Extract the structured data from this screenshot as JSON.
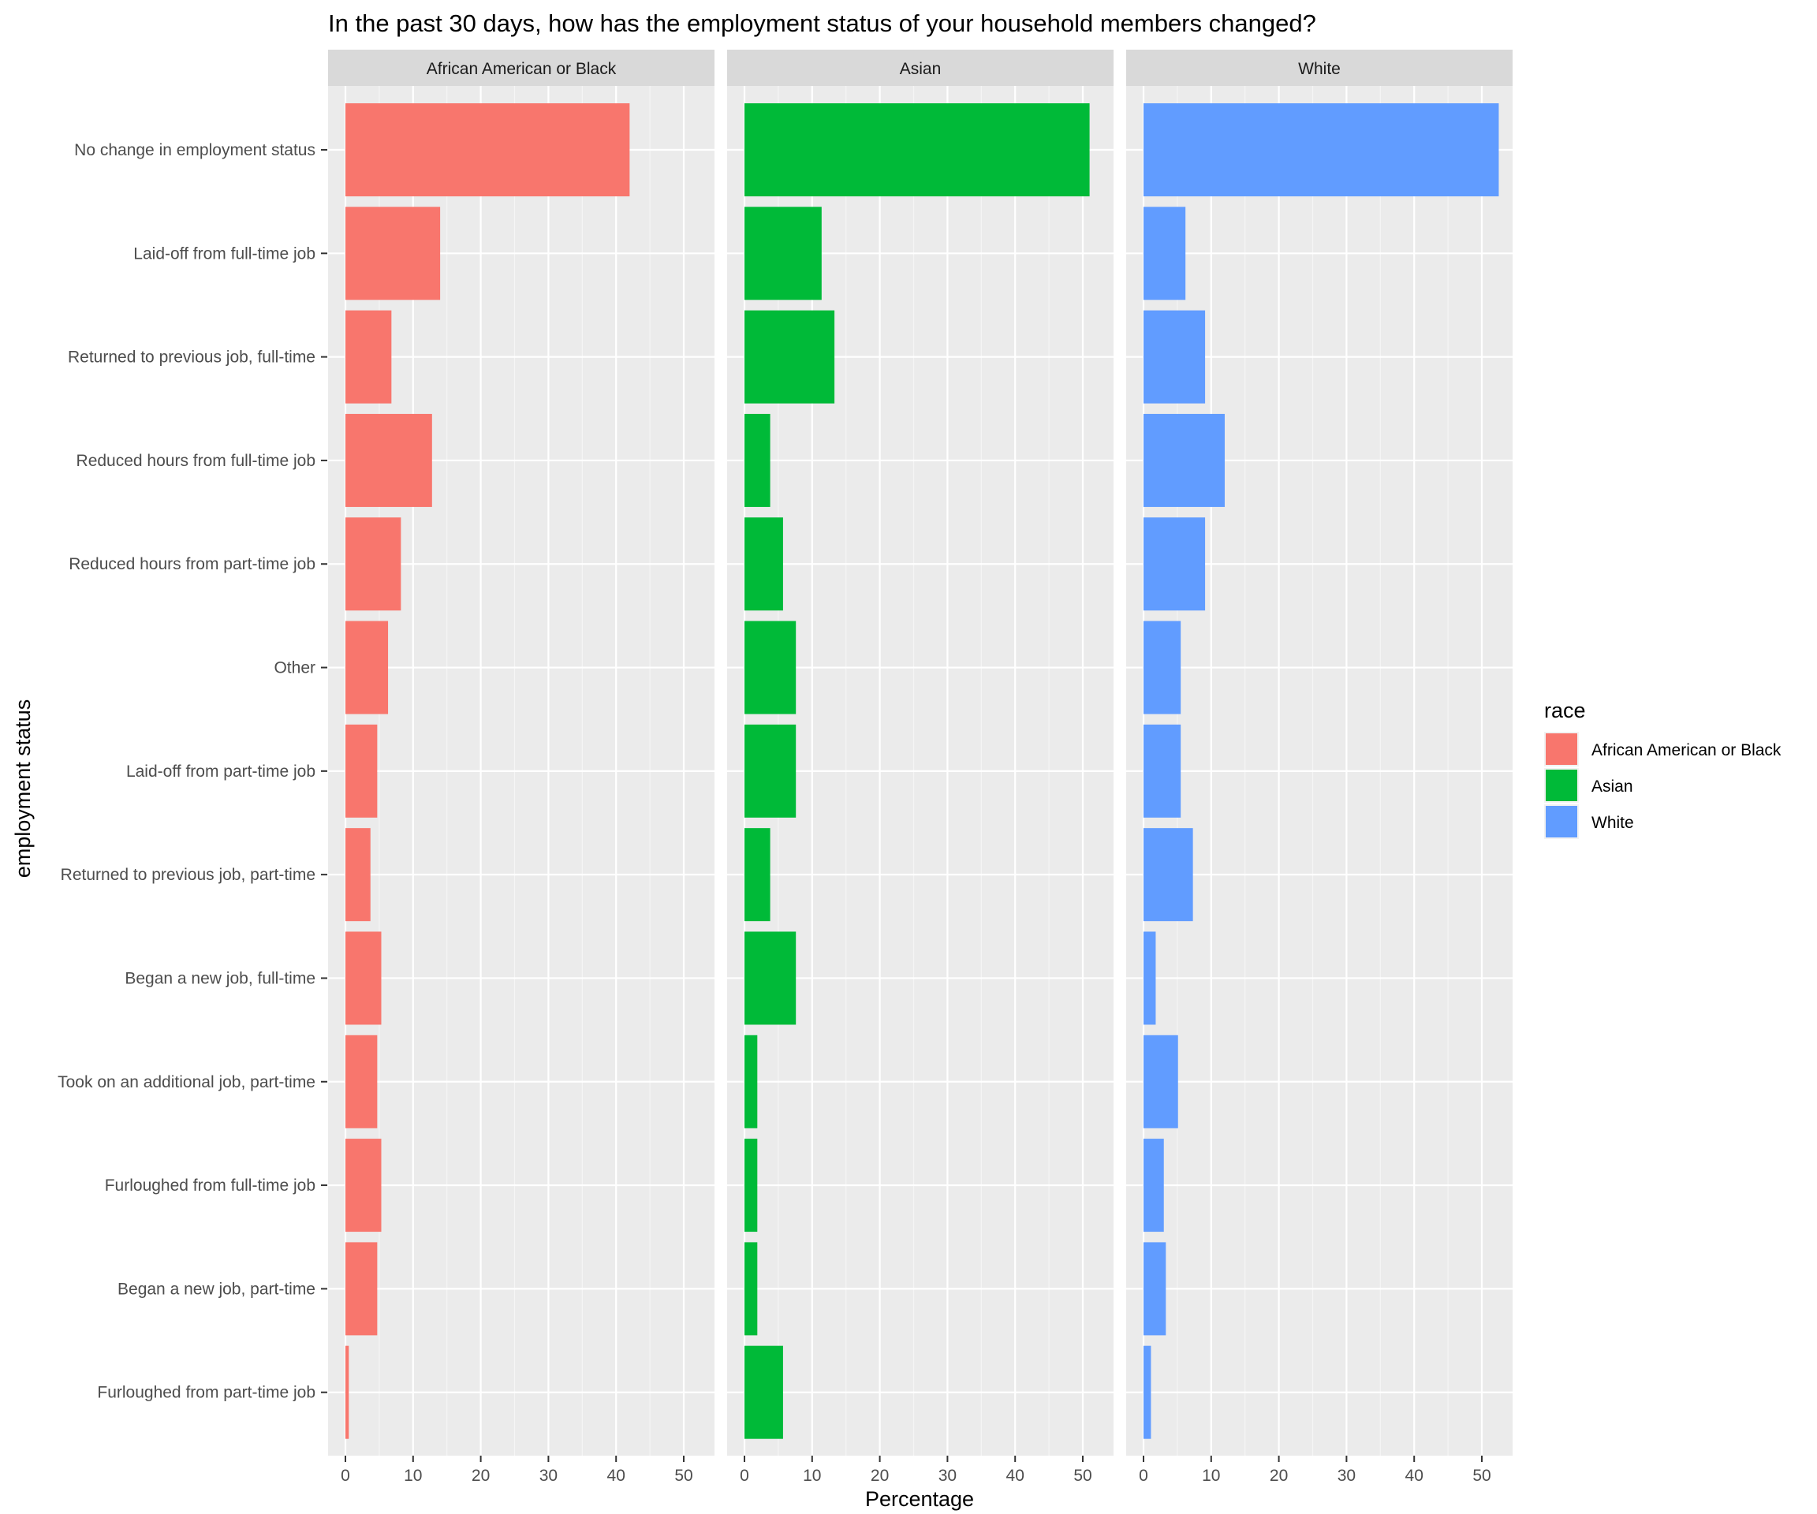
{
  "chart_data": {
    "type": "bar",
    "orientation": "horizontal",
    "title": "In the past 30 days, how has the employment status of your household members changed?",
    "xlabel": "Percentage",
    "ylabel": "employment status",
    "xlim": [
      0,
      55
    ],
    "x_ticks": [
      "0",
      "10",
      "20",
      "30",
      "40",
      "50"
    ],
    "categories": [
      "No change in employment status",
      "Laid-off from full-time job",
      "Returned to previous job, full-time",
      "Reduced hours from full-time job",
      "Reduced hours from part-time job",
      "Other",
      "Laid-off from part-time job",
      "Returned to previous job, part-time",
      "Began a new job, full-time",
      "Took on an additional job, part-time",
      "Furloughed from full-time job",
      "Began a new job, part-time",
      "Furloughed from part-time job"
    ],
    "series": [
      {
        "name": "African American or Black",
        "color": "#F8766D",
        "values": [
          42,
          14,
          6.8,
          12.8,
          8.2,
          6.3,
          4.7,
          3.7,
          5.3,
          4.7,
          5.3,
          4.7,
          0.5
        ]
      },
      {
        "name": "Asian",
        "color": "#00BA38",
        "values": [
          51,
          11.4,
          13.3,
          3.8,
          5.7,
          7.6,
          7.6,
          3.8,
          7.6,
          1.9,
          1.9,
          1.9,
          5.7
        ]
      },
      {
        "name": "White",
        "color": "#619CFF",
        "values": [
          52.5,
          6.2,
          9.1,
          12,
          9.1,
          5.5,
          5.5,
          7.3,
          1.8,
          5.1,
          3,
          3.3,
          1.1
        ]
      }
    ],
    "legend": {
      "title": "race",
      "position": "right"
    },
    "grid": true
  }
}
